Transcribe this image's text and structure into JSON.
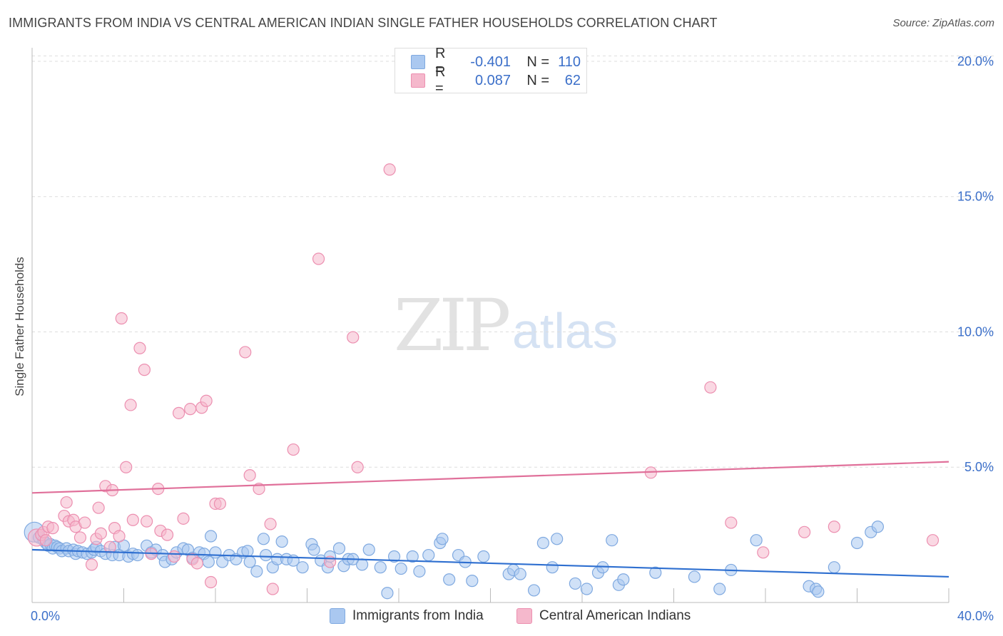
{
  "title": "IMMIGRANTS FROM INDIA VS CENTRAL AMERICAN INDIAN SINGLE FATHER HOUSEHOLDS CORRELATION CHART",
  "source": "Source: ZipAtlas.com",
  "watermark": {
    "zip": "ZIP",
    "atlas": "atlas"
  },
  "legend_top": [
    {
      "r_label": "R =",
      "r_value": "-0.401",
      "n_label": "N =",
      "n_value": "110",
      "color": "#aac8f0"
    },
    {
      "r_label": "R =",
      "r_value": "0.087",
      "n_label": "N =",
      "n_value": "62",
      "color": "#f5b8cc"
    }
  ],
  "legend_bottom": [
    {
      "label": "Immigrants from India",
      "color": "#aac8f0"
    },
    {
      "label": "Central American Indians",
      "color": "#f5b8cc"
    }
  ],
  "colors": {
    "blue_fill": "#aac8f0",
    "blue_stroke": "#7fa9e0",
    "blue_line": "#2e6fd0",
    "pink_fill": "#f5b8cc",
    "pink_stroke": "#ec8fb0",
    "pink_line": "#e0709a",
    "axis_text": "#3b6fc9"
  },
  "chart_data": {
    "type": "scatter",
    "title": "IMMIGRANTS FROM INDIA VS CENTRAL AMERICAN INDIAN SINGLE FATHER HOUSEHOLDS CORRELATION CHART",
    "xlabel": "",
    "ylabel": "Single Father Households",
    "xlim": [
      0,
      40
    ],
    "ylim": [
      0,
      20.5
    ],
    "x_tick_labels": [
      {
        "value": 0,
        "label": "0.0%"
      },
      {
        "value": 40,
        "label": "40.0%"
      }
    ],
    "y_tick_labels": [
      {
        "value": 5,
        "label": "5.0%"
      },
      {
        "value": 10,
        "label": "10.0%"
      },
      {
        "value": 15,
        "label": "15.0%"
      },
      {
        "value": 20,
        "label": "20.0%"
      }
    ],
    "grid": true,
    "series": [
      {
        "name": "Immigrants from India",
        "trend": [
          [
            0,
            1.95
          ],
          [
            40,
            0.95
          ]
        ],
        "points": [
          [
            0.1,
            2.6
          ],
          [
            0.3,
            2.4
          ],
          [
            0.5,
            2.3
          ],
          [
            0.6,
            2.2
          ],
          [
            0.7,
            2.1
          ],
          [
            0.8,
            2.15
          ],
          [
            0.9,
            2.0
          ],
          [
            1.0,
            2.1
          ],
          [
            1.1,
            2.05
          ],
          [
            1.2,
            2.0
          ],
          [
            1.3,
            1.9
          ],
          [
            1.5,
            2.0
          ],
          [
            1.6,
            1.9
          ],
          [
            1.8,
            1.95
          ],
          [
            1.9,
            1.8
          ],
          [
            2.0,
            1.9
          ],
          [
            2.2,
            1.85
          ],
          [
            2.4,
            1.8
          ],
          [
            2.6,
            1.85
          ],
          [
            2.7,
            1.95
          ],
          [
            2.8,
            2.05
          ],
          [
            3.0,
            1.9
          ],
          [
            3.2,
            1.8
          ],
          [
            3.5,
            1.75
          ],
          [
            3.6,
            2.05
          ],
          [
            3.8,
            1.75
          ],
          [
            4.0,
            2.1
          ],
          [
            4.2,
            1.7
          ],
          [
            4.4,
            1.8
          ],
          [
            4.6,
            1.75
          ],
          [
            5.0,
            2.1
          ],
          [
            5.2,
            1.85
          ],
          [
            5.4,
            1.95
          ],
          [
            5.7,
            1.75
          ],
          [
            5.8,
            1.5
          ],
          [
            6.1,
            1.6
          ],
          [
            6.3,
            1.85
          ],
          [
            6.6,
            2.0
          ],
          [
            6.8,
            1.95
          ],
          [
            7.0,
            1.65
          ],
          [
            7.3,
            1.85
          ],
          [
            7.5,
            1.8
          ],
          [
            7.7,
            1.5
          ],
          [
            7.8,
            2.45
          ],
          [
            8.0,
            1.85
          ],
          [
            8.3,
            1.5
          ],
          [
            8.6,
            1.75
          ],
          [
            8.9,
            1.6
          ],
          [
            9.2,
            1.85
          ],
          [
            9.4,
            1.9
          ],
          [
            9.5,
            1.5
          ],
          [
            9.8,
            1.15
          ],
          [
            10.1,
            2.35
          ],
          [
            10.2,
            1.75
          ],
          [
            10.5,
            1.3
          ],
          [
            10.7,
            1.6
          ],
          [
            10.9,
            2.25
          ],
          [
            11.1,
            1.6
          ],
          [
            11.4,
            1.55
          ],
          [
            11.8,
            1.3
          ],
          [
            12.2,
            2.15
          ],
          [
            12.3,
            1.95
          ],
          [
            12.6,
            1.55
          ],
          [
            12.9,
            1.3
          ],
          [
            13.0,
            1.7
          ],
          [
            13.4,
            2.0
          ],
          [
            13.6,
            1.35
          ],
          [
            13.8,
            1.6
          ],
          [
            14.0,
            1.6
          ],
          [
            14.4,
            1.4
          ],
          [
            14.7,
            1.95
          ],
          [
            15.2,
            1.3
          ],
          [
            15.5,
            0.35
          ],
          [
            15.8,
            1.7
          ],
          [
            16.1,
            1.25
          ],
          [
            16.6,
            1.7
          ],
          [
            16.9,
            1.15
          ],
          [
            17.3,
            1.75
          ],
          [
            17.8,
            2.2
          ],
          [
            17.9,
            2.35
          ],
          [
            18.2,
            0.85
          ],
          [
            18.6,
            1.75
          ],
          [
            18.9,
            1.5
          ],
          [
            19.2,
            0.8
          ],
          [
            19.7,
            1.7
          ],
          [
            20.8,
            1.05
          ],
          [
            21.0,
            1.2
          ],
          [
            21.3,
            1.05
          ],
          [
            21.9,
            0.45
          ],
          [
            22.3,
            2.2
          ],
          [
            22.7,
            1.3
          ],
          [
            22.9,
            2.35
          ],
          [
            23.7,
            0.7
          ],
          [
            24.2,
            0.5
          ],
          [
            24.7,
            1.1
          ],
          [
            24.9,
            1.3
          ],
          [
            25.3,
            2.3
          ],
          [
            25.6,
            0.65
          ],
          [
            25.8,
            0.85
          ],
          [
            27.2,
            1.1
          ],
          [
            28.9,
            0.95
          ],
          [
            30.0,
            0.5
          ],
          [
            30.5,
            1.2
          ],
          [
            31.6,
            2.3
          ],
          [
            33.9,
            0.6
          ],
          [
            34.2,
            0.5
          ],
          [
            34.3,
            0.4
          ],
          [
            35.0,
            1.3
          ],
          [
            36.0,
            2.2
          ],
          [
            36.6,
            2.6
          ],
          [
            36.9,
            2.8
          ]
        ]
      },
      {
        "name": "Central American Indians",
        "trend": [
          [
            0,
            4.05
          ],
          [
            40,
            5.2
          ]
        ],
        "points": [
          [
            0.2,
            2.4
          ],
          [
            0.4,
            2.5
          ],
          [
            0.5,
            2.6
          ],
          [
            0.6,
            2.3
          ],
          [
            0.7,
            2.8
          ],
          [
            0.9,
            2.75
          ],
          [
            1.4,
            3.2
          ],
          [
            1.6,
            3.0
          ],
          [
            1.5,
            3.7
          ],
          [
            1.8,
            3.05
          ],
          [
            1.9,
            2.8
          ],
          [
            2.1,
            2.4
          ],
          [
            2.3,
            2.95
          ],
          [
            2.6,
            1.4
          ],
          [
            2.8,
            2.35
          ],
          [
            2.9,
            3.5
          ],
          [
            3.0,
            2.55
          ],
          [
            3.2,
            4.3
          ],
          [
            3.4,
            2.05
          ],
          [
            3.5,
            4.15
          ],
          [
            3.6,
            2.75
          ],
          [
            3.8,
            2.45
          ],
          [
            3.9,
            10.5
          ],
          [
            4.1,
            5.0
          ],
          [
            4.3,
            7.3
          ],
          [
            4.4,
            3.05
          ],
          [
            4.7,
            9.4
          ],
          [
            4.9,
            8.6
          ],
          [
            5.0,
            3.0
          ],
          [
            5.2,
            1.8
          ],
          [
            5.5,
            4.2
          ],
          [
            5.6,
            2.65
          ],
          [
            5.9,
            2.5
          ],
          [
            6.2,
            1.7
          ],
          [
            6.4,
            7.0
          ],
          [
            6.6,
            3.1
          ],
          [
            6.9,
            7.15
          ],
          [
            7.0,
            1.6
          ],
          [
            7.2,
            1.45
          ],
          [
            7.4,
            7.2
          ],
          [
            7.6,
            7.45
          ],
          [
            7.8,
            0.75
          ],
          [
            8.0,
            3.65
          ],
          [
            8.2,
            3.65
          ],
          [
            9.3,
            9.25
          ],
          [
            9.5,
            4.7
          ],
          [
            9.9,
            4.2
          ],
          [
            10.4,
            2.9
          ],
          [
            10.5,
            0.5
          ],
          [
            11.4,
            5.65
          ],
          [
            12.5,
            12.7
          ],
          [
            13.0,
            1.5
          ],
          [
            14.0,
            9.8
          ],
          [
            14.2,
            5.0
          ],
          [
            15.6,
            16.0
          ],
          [
            27.0,
            4.8
          ],
          [
            29.6,
            7.95
          ],
          [
            30.5,
            2.95
          ],
          [
            31.9,
            1.85
          ],
          [
            33.7,
            2.6
          ],
          [
            35.0,
            2.8
          ],
          [
            39.3,
            2.3
          ]
        ]
      }
    ]
  }
}
